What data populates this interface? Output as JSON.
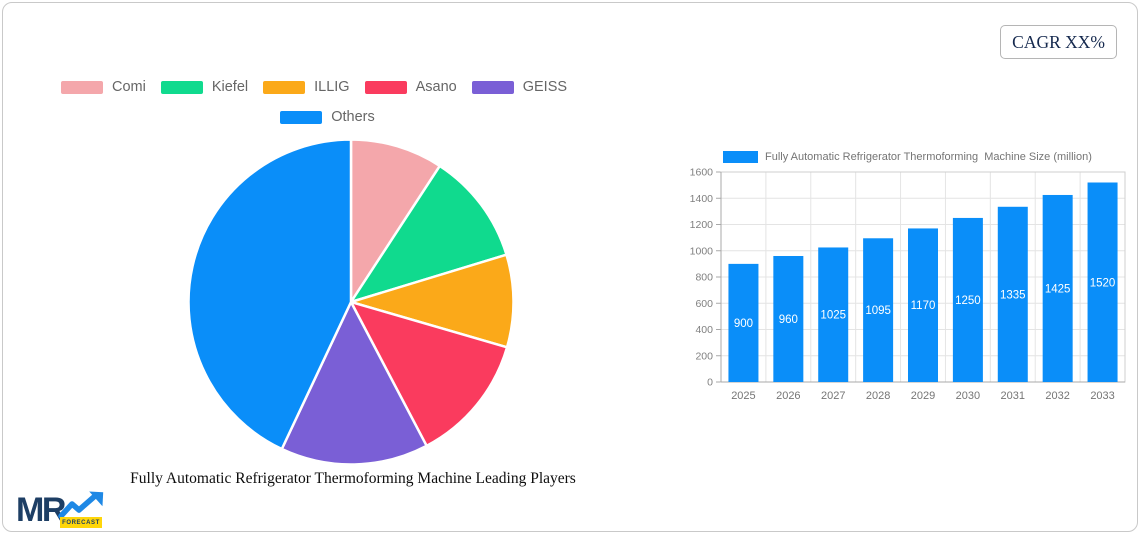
{
  "header": {
    "cagr_label": "CAGR XX%"
  },
  "logo": {
    "brand": "MR",
    "sub": "FORECAST"
  },
  "chart_data": [
    {
      "type": "pie",
      "title": "Fully Automatic Refrigerator Thermoforming Machine Leading Players",
      "labels": [
        "Comi",
        "Kiefel",
        "ILLIG",
        "Asano",
        "GEISS",
        "Others"
      ],
      "values_pct": [
        9.2,
        11.1,
        9.2,
        12.8,
        14.7,
        43.0
      ],
      "colors": [
        "#f4a7ab",
        "#10da8e",
        "#fba919",
        "#fa3b5e",
        "#7a5fd6",
        "#0a8ef9"
      ],
      "start_angle_deg": 0,
      "direction": "clockwise",
      "legend_position": "top",
      "legend_row_split": 5
    },
    {
      "type": "bar",
      "legend": "Fully Automatic Refrigerator Thermoforming  Machine Size (million)",
      "categories": [
        "2025",
        "2026",
        "2027",
        "2028",
        "2029",
        "2030",
        "2031",
        "2032",
        "2033"
      ],
      "values": [
        900,
        960,
        1025,
        1095,
        1170,
        1250,
        1335,
        1425,
        1520
      ],
      "bar_color": "#0a8ef9",
      "value_label_color": "#ffffff",
      "ylim": [
        0,
        1600
      ],
      "ytick_step": 200,
      "yticks": [
        "0",
        "200",
        "400",
        "600",
        "800",
        "1000",
        "1200",
        "1400",
        "1600"
      ],
      "grid": true,
      "legend_position": "top"
    }
  ],
  "colors": {
    "accent_blue": "#0a8ef9",
    "grid": "#e4e4e4",
    "plot_border": "#cfcfcf",
    "axis_line": "#a8a8a8",
    "axis_text": "#757575",
    "ytick_text": "#808080",
    "legend_text": "#666666",
    "navy": "#1d3e64",
    "badge_yellow": "#ffd60a"
  }
}
